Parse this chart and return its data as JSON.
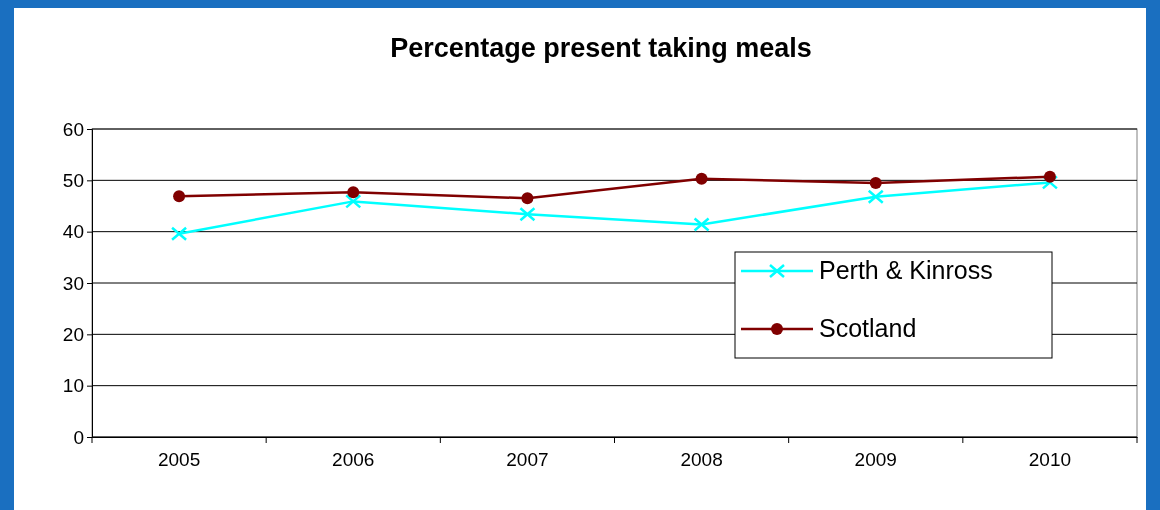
{
  "chart_data": {
    "type": "line",
    "title": "Percentage present taking meals",
    "categories": [
      "2005",
      "2006",
      "2007",
      "2008",
      "2009",
      "2010"
    ],
    "series": [
      {
        "name": "Perth & Kinross",
        "color": "#00ffff",
        "marker": "cross",
        "values": [
          39.6,
          45.9,
          43.4,
          41.4,
          46.8,
          49.6
        ]
      },
      {
        "name": "Scotland",
        "color": "#800000",
        "marker": "circle",
        "values": [
          46.9,
          47.7,
          46.5,
          50.3,
          49.5,
          50.7
        ]
      }
    ],
    "ylim": [
      0,
      60
    ],
    "yticks": [
      0,
      10,
      20,
      30,
      40,
      50,
      60
    ],
    "grid": "y",
    "legend": "right"
  }
}
